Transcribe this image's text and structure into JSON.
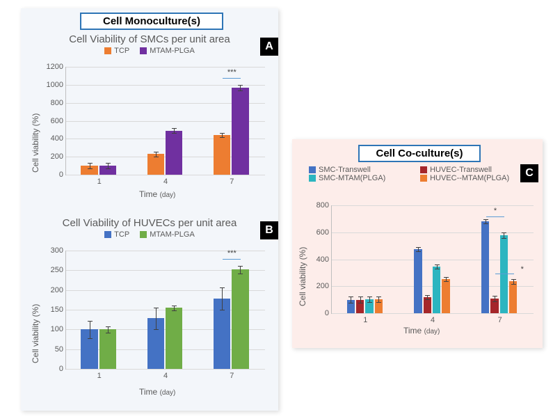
{
  "left": {
    "section_title": "Cell Monoculture(s)",
    "chartA": {
      "badge": "A",
      "title": "Cell Viability of SMCs per unit area",
      "title_fontsize": 15,
      "legend": [
        {
          "label": "TCP",
          "color": "#ed7d31"
        },
        {
          "label": "MTAM-PLGA",
          "color": "#7030a0"
        }
      ],
      "ylabel": "Cell viability (%)",
      "xlabel": "Time",
      "xlabel_unit": "(day)",
      "ylim": [
        0,
        1200
      ],
      "ytick_step": 200,
      "categories": [
        "1",
        "4",
        "7"
      ],
      "series": [
        {
          "color": "#ed7d31",
          "values": [
            100,
            230,
            440
          ],
          "errors": [
            30,
            25,
            25
          ]
        },
        {
          "color": "#7030a0",
          "values": [
            100,
            490,
            970
          ],
          "errors": [
            30,
            25,
            30
          ]
        }
      ],
      "sig": {
        "label": "***",
        "over_category": 2
      }
    },
    "chartB": {
      "badge": "B",
      "title": "Cell Viability of HUVECs per unit area",
      "title_fontsize": 15,
      "legend": [
        {
          "label": "TCP",
          "color": "#4472c4"
        },
        {
          "label": "MTAM-PLGA",
          "color": "#70ad47"
        }
      ],
      "ylabel": "Cell viability (%)",
      "xlabel": "Time",
      "xlabel_unit": "(day)",
      "ylim": [
        0,
        300
      ],
      "ytick_step": 50,
      "categories": [
        "1",
        "4",
        "7"
      ],
      "series": [
        {
          "color": "#4472c4",
          "values": [
            100,
            128,
            178
          ],
          "errors": [
            22,
            28,
            28
          ]
        },
        {
          "color": "#70ad47",
          "values": [
            100,
            155,
            252
          ],
          "errors": [
            8,
            6,
            10
          ]
        }
      ],
      "sig": {
        "label": "***",
        "over_category": 2
      }
    }
  },
  "right": {
    "section_title": "Cell Co-culture(s)",
    "chartC": {
      "badge": "C",
      "title": "",
      "legend": [
        {
          "label": "SMC-Transwell",
          "color": "#4472c4"
        },
        {
          "label": "HUVEC-Transwell",
          "color": "#a5262a"
        },
        {
          "label": "SMC-MTAM(PLGA)",
          "color": "#2cb5c0"
        },
        {
          "label": "HUVEC--MTAM(PLGA)",
          "color": "#ed7d31"
        }
      ],
      "ylabel": "Cell viability (%)",
      "xlabel": "Time",
      "xlabel_unit": "(day)",
      "ylim": [
        0,
        800
      ],
      "ytick_step": 200,
      "categories": [
        "1",
        "4",
        "7"
      ],
      "series": [
        {
          "color": "#4472c4",
          "values": [
            100,
            475,
            680
          ],
          "errors": [
            25,
            15,
            15
          ]
        },
        {
          "color": "#a5262a",
          "values": [
            100,
            120,
            110
          ],
          "errors": [
            25,
            15,
            20
          ]
        },
        {
          "color": "#2cb5c0",
          "values": [
            105,
            345,
            580
          ],
          "errors": [
            20,
            15,
            20
          ]
        },
        {
          "color": "#ed7d31",
          "values": [
            105,
            255,
            235
          ],
          "errors": [
            20,
            15,
            20
          ]
        }
      ],
      "sig": [
        {
          "label": "*",
          "series_pair": [
            0,
            2
          ],
          "category": 2
        },
        {
          "label": "*",
          "series_pair": [
            1,
            3
          ],
          "category": 2
        }
      ]
    },
    "xtick_override_day4": "4"
  },
  "style": {
    "grid_color": "#d9d9d9",
    "axis_color": "#bfbfbf",
    "bg_left": "#f3f6fa",
    "bg_right": "#fdedea"
  }
}
